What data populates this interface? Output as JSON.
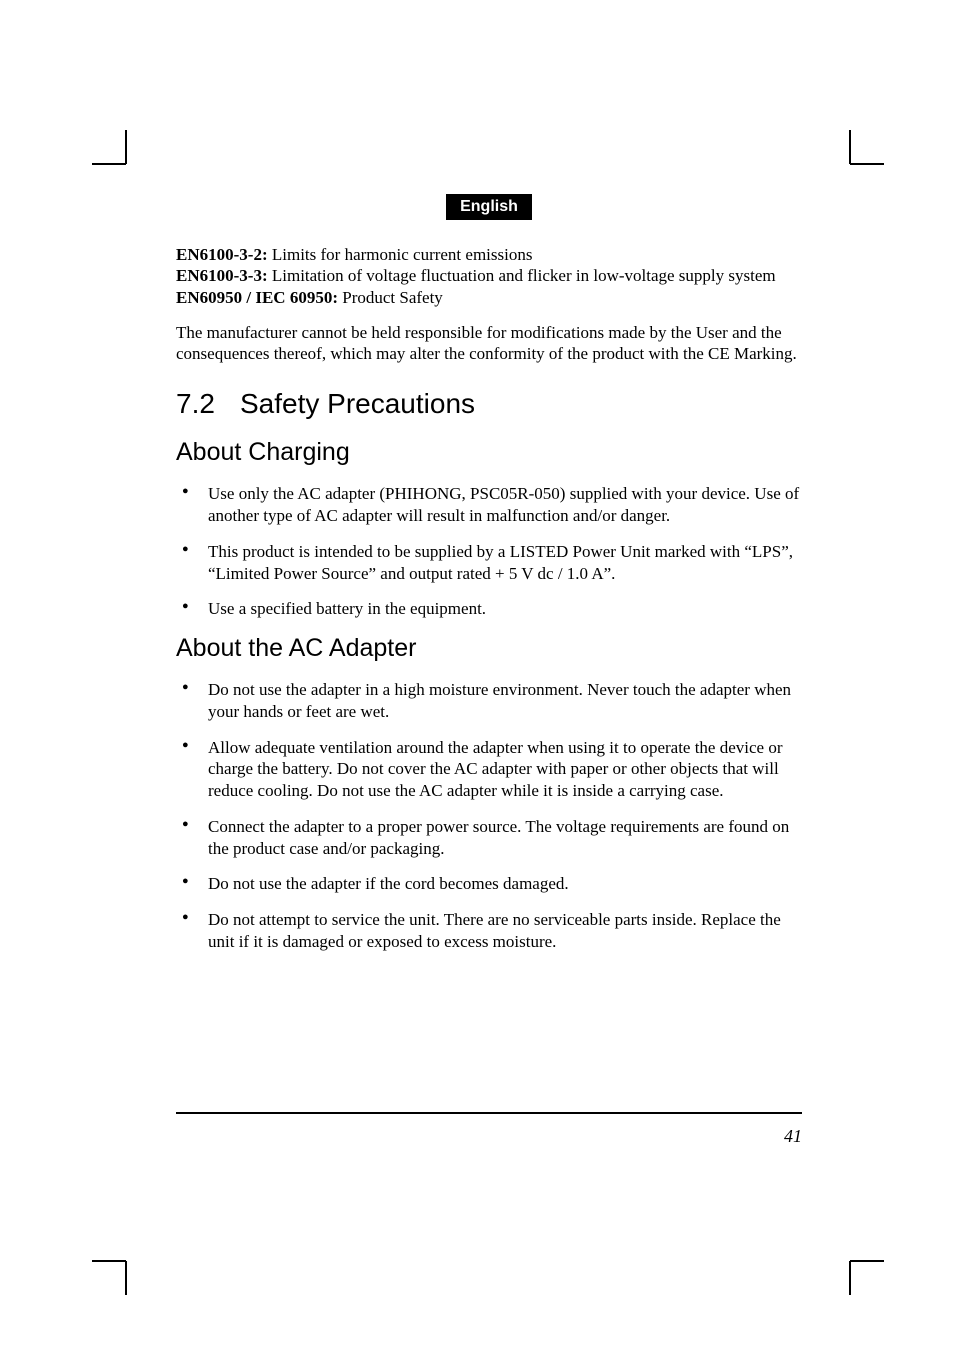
{
  "badge": "English",
  "intro": {
    "lines": [
      {
        "label": "EN6100-3-2:",
        "text": " Limits for harmonic current emissions"
      },
      {
        "label": "EN6100-3-3:",
        "text": " Limitation of voltage fluctuation and flicker in low-voltage supply system"
      },
      {
        "label": "EN60950 / IEC 60950:",
        "text": " Product Safety"
      }
    ],
    "para2": "The manufacturer cannot be held responsible for modifications made by the User and the consequences thereof, which may alter the conformity of the product with the CE Marking."
  },
  "section": {
    "number": "7.2",
    "title": "Safety Precautions"
  },
  "charging": {
    "title": "About Charging",
    "items": [
      "Use only the AC adapter (PHIHONG, PSC05R-050) supplied with your device. Use of another type of AC adapter will result in malfunction and/or danger.",
      "This product is intended to be supplied by a LISTED Power Unit marked with “LPS”, “Limited Power Source” and output rated + 5 V dc / 1.0 A”.",
      "Use a specified battery in the equipment."
    ]
  },
  "adapter": {
    "title": "About the AC Adapter",
    "items": [
      "Do not use the adapter in a high moisture environment. Never touch the adapter when your hands or feet are wet.",
      "Allow adequate ventilation around the adapter when using it to operate the device or charge the battery. Do not cover the AC adapter with paper or other objects that will reduce cooling. Do not use the AC adapter while it is inside a carrying case.",
      "Connect the adapter to a proper power source. The voltage requirements are found on the product case and/or packaging.",
      "Do not use the adapter if the cord becomes damaged.",
      "Do not attempt to service the unit. There are no serviceable parts inside. Replace the unit if it is damaged or exposed to excess moisture."
    ]
  },
  "pageNumber": "41"
}
